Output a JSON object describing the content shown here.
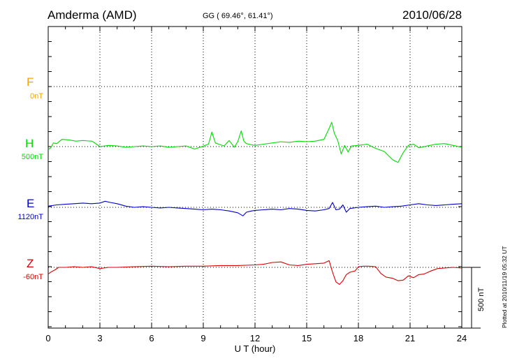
{
  "header": {
    "station": "Amderma (AMD)",
    "coords": "GG ( 69.46°,  61.41°)",
    "date": "2010/06/28"
  },
  "footer": {
    "plotted": "Plotted at 2010/11/19 05:32 UT",
    "scale_label": "500 nT"
  },
  "components": [
    {
      "letter": "F",
      "baseline": "0nT",
      "color": "#f5a500"
    },
    {
      "letter": "H",
      "baseline": "500nT",
      "color": "#00dd00"
    },
    {
      "letter": "E",
      "baseline": "1120nT",
      "color": "#0000cc"
    },
    {
      "letter": "Z",
      "baseline": "-60nT",
      "color": "#dd0000"
    }
  ],
  "chart_data": {
    "type": "line",
    "xlabel": "U T (hour)",
    "xlim": [
      0,
      24
    ],
    "xticks": [
      0,
      3,
      6,
      9,
      12,
      15,
      18,
      21,
      24
    ],
    "scale_bar_nT": 500,
    "series": [
      {
        "name": "H",
        "color": "#00dd00",
        "offset_level": 2,
        "x": [
          0,
          0.15,
          0.3,
          0.5,
          0.8,
          1.2,
          1.6,
          2.0,
          2.5,
          2.6,
          3.0,
          3.5,
          4.0,
          4.5,
          5.0,
          5.5,
          6.0,
          6.5,
          7.0,
          7.5,
          8.0,
          8.5,
          9.0,
          9.3,
          9.5,
          9.7,
          9.9,
          10.2,
          10.5,
          10.8,
          11.0,
          11.2,
          11.35,
          11.5,
          11.8,
          12.0,
          12.5,
          13.0,
          13.5,
          14.0,
          14.5,
          15.0,
          15.5,
          16.0,
          16.3,
          16.45,
          16.6,
          16.8,
          17.0,
          17.2,
          17.4,
          17.6,
          18.0,
          18.5,
          19.0,
          19.5,
          20.0,
          20.3,
          20.6,
          20.9,
          21.2,
          21.5,
          22.0,
          22.5,
          23.0,
          23.5,
          24.0
        ],
        "y": [
          -25,
          -10,
          30,
          25,
          60,
          55,
          45,
          50,
          45,
          40,
          0,
          10,
          5,
          -5,
          0,
          5,
          0,
          5,
          -5,
          0,
          5,
          -20,
          5,
          20,
          120,
          30,
          20,
          5,
          50,
          -5,
          40,
          130,
          45,
          25,
          15,
          10,
          20,
          30,
          40,
          35,
          45,
          40,
          45,
          60,
          150,
          200,
          110,
          50,
          -60,
          10,
          -45,
          5,
          10,
          20,
          -15,
          -40,
          -110,
          -130,
          -50,
          10,
          20,
          -10,
          5,
          20,
          25,
          10,
          -5
        ]
      },
      {
        "name": "E",
        "color": "#0000cc",
        "offset_level": 3,
        "x": [
          0,
          0.5,
          1.0,
          1.5,
          2.0,
          2.5,
          3.0,
          3.3,
          3.6,
          4.0,
          4.5,
          5.0,
          5.5,
          6.0,
          6.5,
          7.0,
          7.5,
          8.0,
          8.5,
          9.0,
          9.5,
          10.0,
          10.5,
          11.0,
          11.3,
          11.5,
          11.8,
          12.0,
          12.5,
          13.0,
          13.5,
          14.0,
          14.5,
          15.0,
          15.5,
          16.0,
          16.3,
          16.5,
          16.7,
          16.9,
          17.1,
          17.3,
          17.5,
          18.0,
          18.5,
          19.0,
          19.5,
          20.0,
          20.5,
          21.0,
          21.5,
          22.0,
          22.5,
          23.0,
          23.5,
          24.0
        ],
        "y": [
          10,
          20,
          25,
          30,
          35,
          30,
          35,
          50,
          40,
          30,
          10,
          0,
          5,
          0,
          -5,
          0,
          -5,
          -10,
          -15,
          -20,
          -15,
          -20,
          -30,
          -45,
          -70,
          -40,
          -30,
          -25,
          -20,
          -15,
          -20,
          -10,
          -15,
          -25,
          -30,
          -20,
          -10,
          40,
          -20,
          -15,
          20,
          -40,
          -10,
          0,
          5,
          10,
          0,
          5,
          10,
          20,
          30,
          20,
          15,
          20,
          25,
          30
        ]
      },
      {
        "name": "Z",
        "color": "#dd0000",
        "offset_level": 4,
        "x": [
          0,
          0.2,
          0.4,
          0.6,
          1.0,
          1.5,
          2.0,
          2.5,
          3.0,
          3.5,
          4.0,
          5.0,
          6.0,
          7.0,
          8.0,
          9.0,
          10.0,
          11.0,
          12.0,
          12.5,
          13.0,
          13.5,
          14.0,
          14.5,
          15.0,
          15.5,
          16.0,
          16.3,
          16.5,
          16.7,
          16.9,
          17.1,
          17.3,
          17.5,
          17.8,
          18.0,
          18.3,
          18.6,
          19.0,
          19.3,
          19.6,
          20.0,
          20.3,
          20.6,
          20.9,
          21.2,
          21.5,
          21.8,
          22.2,
          22.6,
          23.0,
          23.5,
          24.0
        ],
        "y": [
          -55,
          -35,
          -20,
          0,
          0,
          5,
          0,
          5,
          -10,
          0,
          0,
          5,
          10,
          5,
          10,
          10,
          15,
          15,
          20,
          25,
          40,
          45,
          20,
          15,
          25,
          30,
          35,
          55,
          -40,
          -120,
          -140,
          -110,
          -60,
          -40,
          -30,
          5,
          10,
          10,
          5,
          -50,
          -80,
          -90,
          -110,
          -105,
          -70,
          -85,
          -60,
          -55,
          -30,
          -10,
          -5,
          0,
          -5
        ]
      }
    ]
  }
}
